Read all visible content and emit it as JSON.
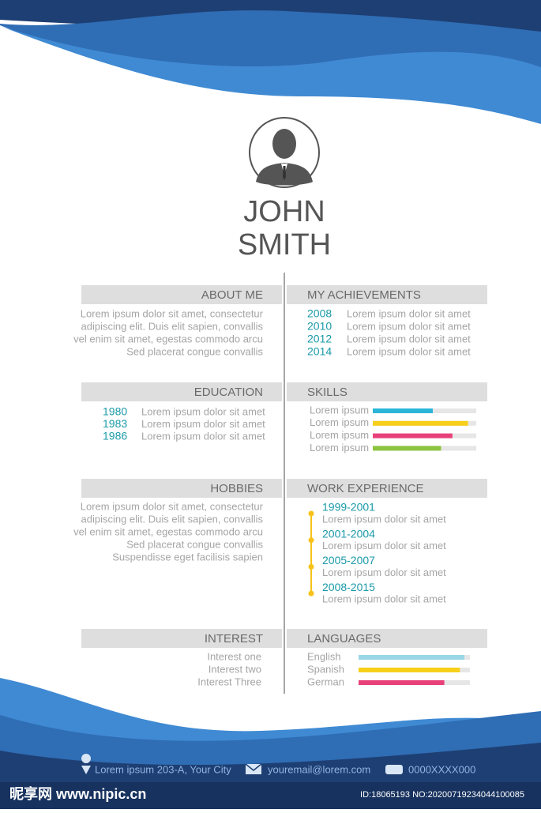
{
  "name": {
    "first": "JOHN",
    "last": "SMITH"
  },
  "about": {
    "title": "ABOUT ME",
    "lines": [
      "Lorem ipsum dolor sit amet, consectetur",
      "adipiscing elit.  Duis elit sapien, convallis",
      "vel enim sit amet, egestas commodo arcu",
      "Sed placerat congue convallis"
    ]
  },
  "achievements": {
    "title": "MY ACHIEVEMENTS",
    "items": [
      {
        "year": "2008",
        "text": "Lorem ipsum dolor sit amet"
      },
      {
        "year": "2010",
        "text": "Lorem ipsum dolor sit amet"
      },
      {
        "year": "2012",
        "text": "Lorem ipsum dolor sit amet"
      },
      {
        "year": "2014",
        "text": "Lorem ipsum dolor sit amet"
      }
    ]
  },
  "education": {
    "title": "EDUCATION",
    "items": [
      {
        "year": "1980",
        "text": "Lorem ipsum dolor sit amet"
      },
      {
        "year": "1983",
        "text": "Lorem ipsum dolor sit amet"
      },
      {
        "year": "1986",
        "text": "Lorem ipsum dolor sit amet"
      }
    ]
  },
  "skills": {
    "title": "SKILLS",
    "xlim": [
      0,
      100
    ],
    "items": [
      {
        "label": "Lorem ipsum",
        "value": 58,
        "color": "#2bb5d9"
      },
      {
        "label": "Lorem ipsum",
        "value": 92,
        "color": "#f7cf1a"
      },
      {
        "label": "Lorem ipsum",
        "value": 77,
        "color": "#e8417a"
      },
      {
        "label": "Lorem ipsum",
        "value": 66,
        "color": "#8cc43f"
      }
    ]
  },
  "hobbies": {
    "title": "HOBBIES",
    "lines": [
      "Lorem ipsum dolor sit amet, consectetur",
      "adipiscing elit.  Duis elit sapien, convallis",
      "vel enim sit amet, egestas commodo arcu",
      "Sed placerat congue convallis",
      "Suspendisse eget facilisis sapien"
    ]
  },
  "work": {
    "title": "WORK EXPERIENCE",
    "items": [
      {
        "period": "1999-2001",
        "text": "Lorem ipsum dolor sit amet"
      },
      {
        "period": "2001-2004",
        "text": "Lorem ipsum dolor sit amet"
      },
      {
        "period": "2005-2007",
        "text": "Lorem ipsum dolor sit amet"
      },
      {
        "period": "2008-2015",
        "text": "Lorem ipsum dolor sit amet"
      }
    ]
  },
  "interest": {
    "title": "INTEREST",
    "lines": [
      "Interest one",
      "Interest two",
      "Interest Three"
    ]
  },
  "languages": {
    "title": "LANGUAGES",
    "xlim": [
      0,
      100
    ],
    "items": [
      {
        "label": "English",
        "value": 95,
        "color": "#9ad7e6"
      },
      {
        "label": "Spanish",
        "value": 91,
        "color": "#f7cf1a"
      },
      {
        "label": "German",
        "value": 77,
        "color": "#e8417a"
      }
    ]
  },
  "footer": {
    "address": "Lorem ipsum 203-A, Your City",
    "email": "youremail@lorem.com",
    "phone": "0000XXXX000"
  },
  "watermark": {
    "site": "昵享网 www.nipic.cn",
    "id": "ID:18065193 NO:20200719234044100085"
  }
}
